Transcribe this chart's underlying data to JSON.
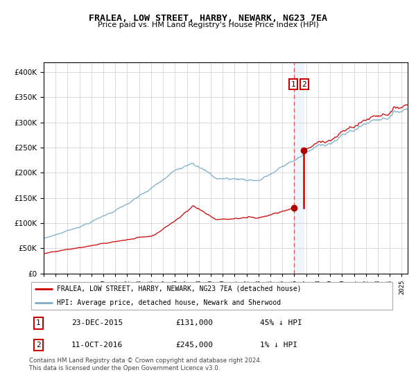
{
  "title": "FRALEA, LOW STREET, HARBY, NEWARK, NG23 7EA",
  "subtitle": "Price paid vs. HM Land Registry's House Price Index (HPI)",
  "legend_line1": "FRALEA, LOW STREET, HARBY, NEWARK, NG23 7EA (detached house)",
  "legend_line2": "HPI: Average price, detached house, Newark and Sherwood",
  "table_rows": [
    {
      "num": "1",
      "date": "23-DEC-2015",
      "price": "£131,000",
      "pct": "45% ↓ HPI"
    },
    {
      "num": "2",
      "date": "11-OCT-2016",
      "price": "£245,000",
      "pct": "1% ↓ HPI"
    }
  ],
  "footnote": "Contains HM Land Registry data © Crown copyright and database right 2024.\nThis data is licensed under the Open Government Licence v3.0.",
  "sale1_date_num": 2015.975,
  "sale1_price": 131000,
  "sale2_date_num": 2016.783,
  "sale2_price": 245000,
  "red_line_color": "#cc0000",
  "blue_line_color": "#7aaccc",
  "marker_color": "#aa0000",
  "vline_color": "#dd4444",
  "background_color": "#ffffff",
  "grid_color": "#cccccc",
  "ylim": [
    0,
    420000
  ],
  "xlim_start": 1995.0,
  "xlim_end": 2025.5
}
